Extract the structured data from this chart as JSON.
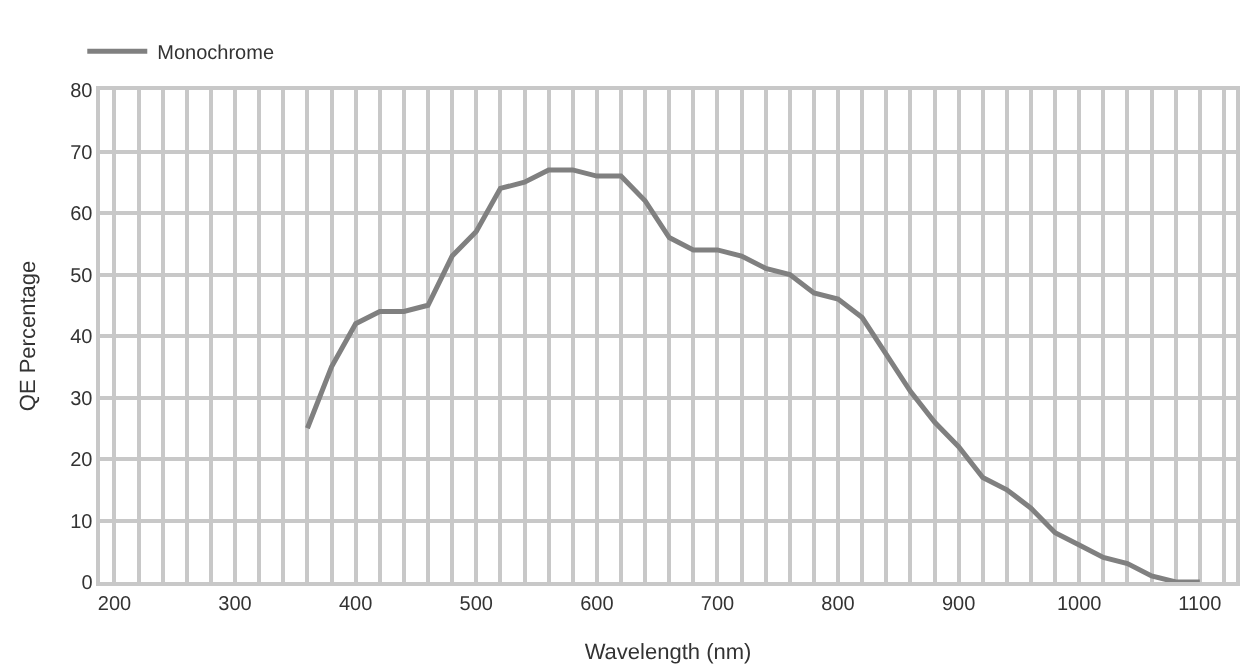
{
  "chart_data": {
    "type": "line",
    "xlabel": "Wavelength (nm)",
    "ylabel": "QE Percentage",
    "x": [
      360,
      380,
      400,
      420,
      440,
      460,
      480,
      500,
      520,
      540,
      560,
      580,
      600,
      620,
      640,
      660,
      680,
      700,
      720,
      740,
      760,
      780,
      800,
      820,
      840,
      860,
      880,
      900,
      920,
      940,
      960,
      980,
      1000,
      1020,
      1040,
      1060,
      1080,
      1100
    ],
    "series": [
      {
        "name": "Monochrome",
        "color": "#808080",
        "values": [
          25,
          35,
          42,
          44,
          44,
          45,
          53,
          57,
          64,
          65,
          67,
          67,
          66,
          66,
          62,
          56,
          54,
          54,
          53,
          51,
          50,
          47,
          46,
          43,
          37,
          31,
          26,
          22,
          17,
          15,
          12,
          8,
          6,
          4,
          3,
          1,
          0,
          0
        ]
      }
    ],
    "xlim": [
      188,
      1130
    ],
    "xticks": [
      200,
      {
        "value": 220,
        "label": null
      },
      {
        "value": 240,
        "label": null
      },
      {
        "value": 260,
        "label": null
      },
      {
        "value": 280,
        "label": null
      },
      300,
      {
        "value": 320,
        "label": null
      },
      {
        "value": 340,
        "label": null
      },
      {
        "value": 360,
        "label": null
      },
      {
        "value": 380,
        "label": null
      },
      400,
      {
        "value": 420,
        "label": null
      },
      {
        "value": 440,
        "label": null
      },
      {
        "value": 460,
        "label": null
      },
      {
        "value": 480,
        "label": null
      },
      500,
      {
        "value": 520,
        "label": null
      },
      {
        "value": 540,
        "label": null
      },
      {
        "value": 560,
        "label": null
      },
      {
        "value": 580,
        "label": null
      },
      600,
      {
        "value": 620,
        "label": null
      },
      {
        "value": 640,
        "label": null
      },
      {
        "value": 660,
        "label": null
      },
      {
        "value": 680,
        "label": null
      },
      700,
      {
        "value": 720,
        "label": null
      },
      {
        "value": 740,
        "label": null
      },
      {
        "value": 760,
        "label": null
      },
      {
        "value": 780,
        "label": null
      },
      800,
      {
        "value": 820,
        "label": null
      },
      {
        "value": 840,
        "label": null
      },
      {
        "value": 860,
        "label": null
      },
      {
        "value": 880,
        "label": null
      },
      900,
      {
        "value": 920,
        "label": null
      },
      {
        "value": 940,
        "label": null
      },
      {
        "value": 960,
        "label": null
      },
      {
        "value": 980,
        "label": null
      },
      1000,
      {
        "value": 1020,
        "label": null
      },
      {
        "value": 1040,
        "label": null
      },
      {
        "value": 1060,
        "label": null
      },
      {
        "value": 1080,
        "label": null
      },
      1100,
      {
        "value": 1120,
        "label": null
      }
    ],
    "ylim": [
      0,
      80
    ],
    "yticks": [
      0,
      10,
      20,
      30,
      40,
      50,
      60,
      70,
      80
    ],
    "grid": true,
    "legend": "top left",
    "marker": "none",
    "line_style": "solid"
  }
}
